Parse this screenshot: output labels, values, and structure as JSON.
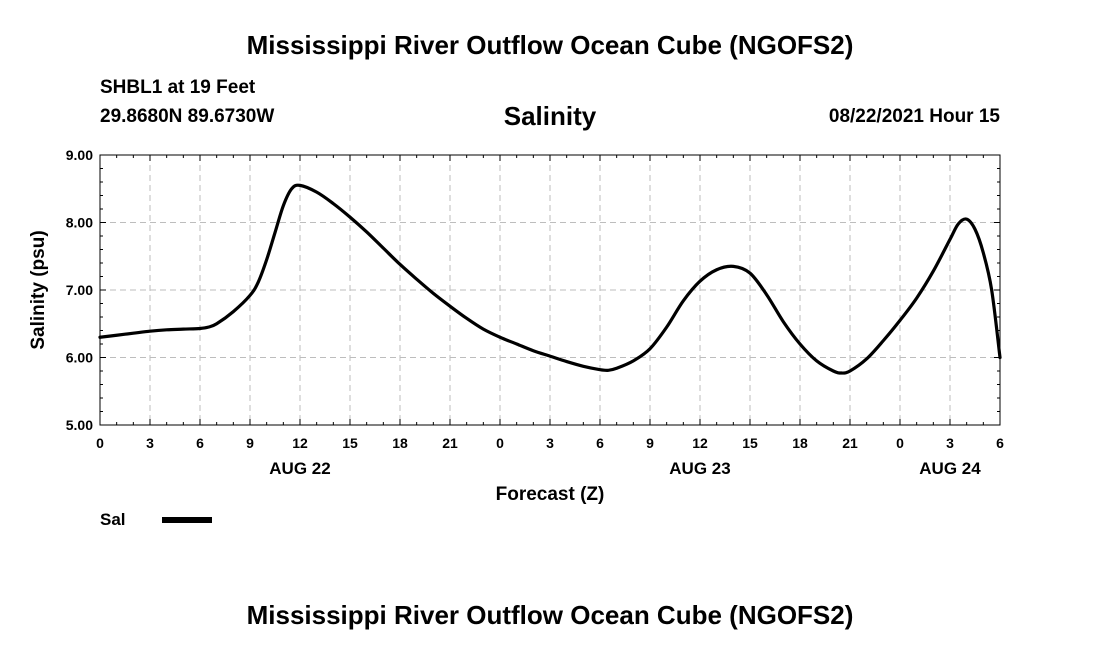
{
  "header": {
    "title": "Mississippi River Outflow Ocean Cube (NGOFS2)",
    "station": "SHBL1 at 19 Feet",
    "coords": "29.8680N  89.6730W",
    "variable": "Salinity",
    "datetime": "08/22/2021 Hour 15"
  },
  "footer": {
    "title": "Mississippi River Outflow Ocean Cube (NGOFS2)"
  },
  "legend": {
    "label": "Sal",
    "color": "#000000"
  },
  "chart_data": {
    "type": "line",
    "title": "Salinity",
    "xlabel": "Forecast (Z)",
    "ylabel": "Salinity (psu)",
    "xlim": [
      0,
      54
    ],
    "ylim": [
      5.0,
      9.0
    ],
    "grid": true,
    "yticks": [
      {
        "value": 5.0,
        "label": "5.00"
      },
      {
        "value": 6.0,
        "label": "6.00"
      },
      {
        "value": 7.0,
        "label": "7.00"
      },
      {
        "value": 8.0,
        "label": "8.00"
      },
      {
        "value": 9.0,
        "label": "9.00"
      }
    ],
    "xticks": [
      {
        "value": 0,
        "label": "0"
      },
      {
        "value": 3,
        "label": "3"
      },
      {
        "value": 6,
        "label": "6"
      },
      {
        "value": 9,
        "label": "9"
      },
      {
        "value": 12,
        "label": "12"
      },
      {
        "value": 15,
        "label": "15"
      },
      {
        "value": 18,
        "label": "18"
      },
      {
        "value": 21,
        "label": "21"
      },
      {
        "value": 24,
        "label": "0"
      },
      {
        "value": 27,
        "label": "3"
      },
      {
        "value": 30,
        "label": "6"
      },
      {
        "value": 33,
        "label": "9"
      },
      {
        "value": 36,
        "label": "12"
      },
      {
        "value": 39,
        "label": "15"
      },
      {
        "value": 42,
        "label": "18"
      },
      {
        "value": 45,
        "label": "21"
      },
      {
        "value": 48,
        "label": "0"
      },
      {
        "value": 51,
        "label": "3"
      },
      {
        "value": 54,
        "label": "6"
      }
    ],
    "date_labels": [
      {
        "value": 12,
        "label": "AUG 22"
      },
      {
        "value": 36,
        "label": "AUG 23"
      },
      {
        "value": 51,
        "label": "AUG 24"
      }
    ],
    "series": [
      {
        "name": "Sal",
        "color": "#000000",
        "x": [
          0,
          1,
          2,
          3,
          4,
          5,
          6,
          6.5,
          7,
          8,
          9,
          9.5,
          10,
          10.5,
          11,
          11.5,
          12,
          13,
          14,
          15,
          16,
          17,
          18,
          19,
          20,
          21,
          22,
          23,
          24,
          25,
          26,
          27,
          28,
          29,
          30,
          30.5,
          31,
          32,
          33,
          34,
          35,
          36,
          37,
          38,
          39,
          40,
          41,
          42,
          43,
          44,
          44.5,
          45,
          46,
          47,
          48,
          49,
          50,
          51,
          51.5,
          52,
          52.5,
          53,
          53.5,
          54
        ],
        "values": [
          6.3,
          6.33,
          6.36,
          6.39,
          6.41,
          6.42,
          6.43,
          6.45,
          6.5,
          6.68,
          6.92,
          7.12,
          7.45,
          7.85,
          8.25,
          8.5,
          8.55,
          8.45,
          8.28,
          8.08,
          7.86,
          7.62,
          7.38,
          7.16,
          6.95,
          6.76,
          6.58,
          6.42,
          6.3,
          6.2,
          6.1,
          6.02,
          5.94,
          5.87,
          5.82,
          5.81,
          5.84,
          5.95,
          6.13,
          6.45,
          6.84,
          7.13,
          7.3,
          7.35,
          7.25,
          6.93,
          6.53,
          6.2,
          5.95,
          5.8,
          5.77,
          5.8,
          5.98,
          6.25,
          6.55,
          6.88,
          7.28,
          7.75,
          7.98,
          8.05,
          7.9,
          7.55,
          7.0,
          6.0
        ]
      }
    ]
  }
}
